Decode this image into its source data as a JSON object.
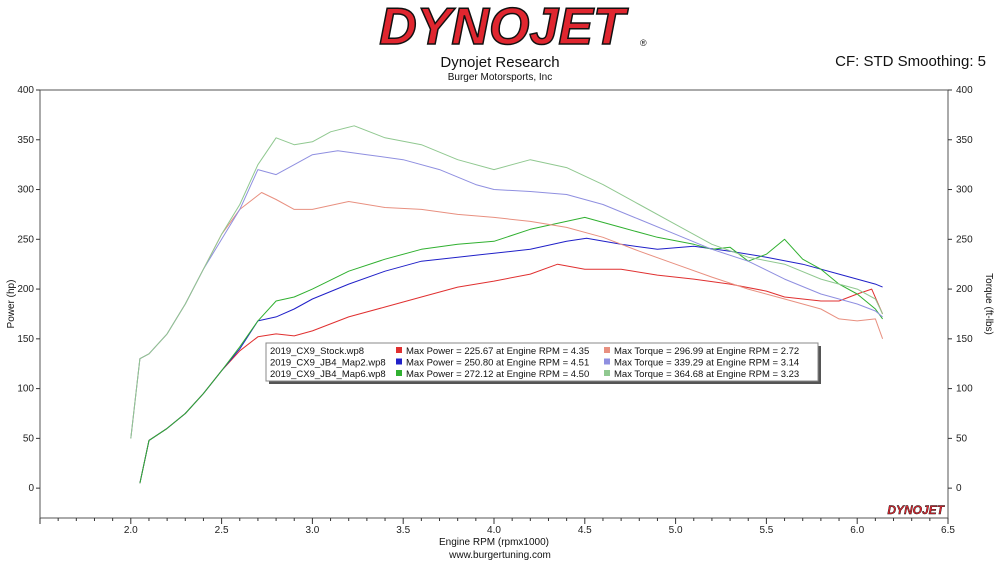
{
  "header": {
    "logo_text": "DYNOJET",
    "title": "Dynojet Research",
    "subtitle": "Burger Motorsports, Inc",
    "cf_info": "CF: STD Smoothing: 5",
    "logo_color": "#e0262f",
    "small_logo_text": "DYNOJET"
  },
  "footer": {
    "url": "www.burgertuning.com"
  },
  "chart_data": {
    "type": "line",
    "xlabel": "Engine RPM (rpmx1000)",
    "ylabel": "Power (hp)",
    "y2label": "Torque (ft-lbs)",
    "xlim": [
      1.5,
      6.5
    ],
    "ylim": [
      -30,
      400
    ],
    "xticks": [
      2.0,
      2.5,
      3.0,
      3.5,
      4.0,
      4.5,
      5.0,
      5.5,
      6.0,
      6.5
    ],
    "yticks": [
      0,
      50,
      100,
      150,
      200,
      250,
      300,
      350,
      400
    ],
    "series": [
      {
        "name": "2019_CX9_Stock.wp8 Power",
        "color": "#e03030",
        "kind": "power",
        "x": [
          2.05,
          2.1,
          2.2,
          2.3,
          2.4,
          2.5,
          2.6,
          2.7,
          2.8,
          2.9,
          3.0,
          3.2,
          3.4,
          3.6,
          3.8,
          4.0,
          4.2,
          4.35,
          4.5,
          4.7,
          4.9,
          5.1,
          5.3,
          5.5,
          5.6,
          5.7,
          5.8,
          5.9,
          6.0,
          6.08,
          6.14
        ],
        "y": [
          5,
          48,
          60,
          75,
          95,
          118,
          138,
          152,
          155,
          153,
          158,
          172,
          182,
          192,
          202,
          208,
          215,
          225,
          220,
          220,
          214,
          210,
          205,
          198,
          192,
          190,
          188,
          188,
          195,
          200,
          175
        ]
      },
      {
        "name": "2019_CX9_JB4_Map2.wp8 Power",
        "color": "#2020c8",
        "kind": "power",
        "x": [
          2.05,
          2.1,
          2.2,
          2.3,
          2.4,
          2.5,
          2.6,
          2.7,
          2.8,
          2.9,
          3.0,
          3.2,
          3.4,
          3.6,
          3.8,
          4.0,
          4.2,
          4.4,
          4.51,
          4.7,
          4.9,
          5.1,
          5.3,
          5.5,
          5.7,
          5.9,
          6.0,
          6.1,
          6.14
        ],
        "y": [
          5,
          48,
          60,
          75,
          95,
          118,
          140,
          168,
          172,
          180,
          190,
          205,
          218,
          228,
          232,
          236,
          240,
          248,
          251,
          245,
          240,
          243,
          238,
          232,
          225,
          215,
          210,
          205,
          202
        ]
      },
      {
        "name": "2019_CX9_JB4_Map6.wp8 Power",
        "color": "#30b030",
        "kind": "power",
        "x": [
          2.05,
          2.1,
          2.2,
          2.3,
          2.4,
          2.5,
          2.6,
          2.7,
          2.8,
          2.9,
          3.0,
          3.2,
          3.4,
          3.6,
          3.8,
          4.0,
          4.2,
          4.5,
          4.7,
          4.9,
          5.1,
          5.2,
          5.3,
          5.4,
          5.5,
          5.6,
          5.7,
          5.8,
          5.9,
          6.0,
          6.1,
          6.14
        ],
        "y": [
          5,
          48,
          60,
          75,
          95,
          118,
          142,
          168,
          188,
          192,
          200,
          218,
          230,
          240,
          245,
          248,
          260,
          272,
          262,
          252,
          245,
          240,
          242,
          228,
          235,
          250,
          230,
          220,
          205,
          195,
          180,
          170
        ]
      },
      {
        "name": "2019_CX9_Stock.wp8 Torque",
        "color": "#e89080",
        "kind": "torque",
        "x": [
          2.0,
          2.05,
          2.1,
          2.2,
          2.3,
          2.4,
          2.5,
          2.6,
          2.72,
          2.8,
          2.9,
          3.0,
          3.2,
          3.4,
          3.6,
          3.8,
          4.0,
          4.2,
          4.4,
          4.6,
          4.8,
          5.0,
          5.2,
          5.4,
          5.6,
          5.8,
          5.9,
          6.0,
          6.1,
          6.14
        ],
        "y": [
          50,
          130,
          135,
          155,
          185,
          220,
          255,
          280,
          297,
          290,
          280,
          280,
          288,
          282,
          280,
          275,
          272,
          268,
          262,
          252,
          238,
          225,
          212,
          200,
          190,
          180,
          170,
          168,
          170,
          150
        ]
      },
      {
        "name": "2019_CX9_JB4_Map2.wp8 Torque",
        "color": "#8f8fe0",
        "kind": "torque",
        "x": [
          2.0,
          2.05,
          2.1,
          2.2,
          2.3,
          2.4,
          2.5,
          2.6,
          2.7,
          2.8,
          2.9,
          3.0,
          3.14,
          3.3,
          3.5,
          3.7,
          3.9,
          4.0,
          4.2,
          4.4,
          4.6,
          4.8,
          5.0,
          5.2,
          5.4,
          5.6,
          5.8,
          6.0,
          6.1,
          6.14
        ],
        "y": [
          50,
          130,
          135,
          155,
          185,
          220,
          250,
          280,
          320,
          315,
          325,
          335,
          339,
          335,
          330,
          320,
          305,
          300,
          298,
          295,
          285,
          270,
          255,
          240,
          228,
          210,
          195,
          185,
          178,
          172
        ]
      },
      {
        "name": "2019_CX9_JB4_Map6.wp8 Torque",
        "color": "#90c890",
        "kind": "torque",
        "x": [
          2.0,
          2.05,
          2.1,
          2.2,
          2.3,
          2.4,
          2.5,
          2.6,
          2.7,
          2.8,
          2.9,
          3.0,
          3.1,
          3.23,
          3.4,
          3.6,
          3.8,
          4.0,
          4.2,
          4.4,
          4.6,
          4.8,
          5.0,
          5.2,
          5.4,
          5.6,
          5.8,
          6.0,
          6.1,
          6.14
        ],
        "y": [
          50,
          130,
          135,
          155,
          185,
          220,
          255,
          285,
          325,
          352,
          345,
          348,
          358,
          364,
          352,
          345,
          330,
          320,
          330,
          322,
          305,
          285,
          265,
          245,
          232,
          225,
          210,
          200,
          190,
          175
        ]
      }
    ],
    "legend": {
      "placement": "center-left",
      "rows": [
        {
          "file": "2019_CX9_Stock.wp8",
          "power_color": "#e03030",
          "power": "Max Power = 225.67 at Engine RPM = 4.35",
          "torque_color": "#e89080",
          "torque": "Max Torque = 296.99 at Engine RPM = 2.72"
        },
        {
          "file": "2019_CX9_JB4_Map2.wp8",
          "power_color": "#2020c8",
          "power": "Max Power = 250.80 at Engine RPM = 4.51",
          "torque_color": "#8f8fe0",
          "torque": "Max Torque = 339.29 at Engine RPM = 3.14"
        },
        {
          "file": "2019_CX9_JB4_Map6.wp8",
          "power_color": "#30b030",
          "power": "Max Power = 272.12 at Engine RPM = 4.50",
          "torque_color": "#90c890",
          "torque": "Max Torque = 364.68 at Engine RPM = 3.23"
        }
      ]
    },
    "grid": false
  }
}
